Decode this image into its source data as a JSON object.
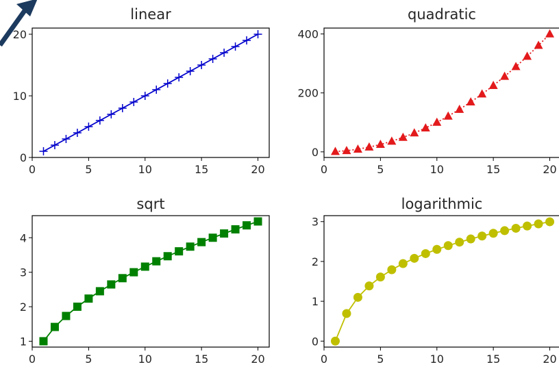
{
  "chart_data": [
    {
      "type": "line",
      "title": "linear",
      "xlabel": "",
      "ylabel": "",
      "marker": "plus",
      "color": "#0000cc",
      "xlim": [
        0,
        21
      ],
      "ylim": [
        0,
        21
      ],
      "xticks": [
        0,
        5,
        10,
        15,
        20
      ],
      "yticks": [
        0,
        10,
        20
      ],
      "grid": false,
      "series": [
        {
          "x": [
            1,
            2,
            3,
            4,
            5,
            6,
            7,
            8,
            9,
            10,
            11,
            12,
            13,
            14,
            15,
            16,
            17,
            18,
            19,
            20
          ],
          "y": [
            1,
            2,
            3,
            4,
            5,
            6,
            7,
            8,
            9,
            10,
            11,
            12,
            13,
            14,
            15,
            16,
            17,
            18,
            19,
            20
          ]
        }
      ]
    },
    {
      "type": "line",
      "title": "quadratic",
      "xlabel": "",
      "ylabel": "",
      "marker": "triangle",
      "linestyle": "dotted",
      "color": "#e31a1c",
      "xlim": [
        0,
        21
      ],
      "ylim": [
        -19,
        420
      ],
      "xticks": [
        0,
        5,
        10,
        15,
        20
      ],
      "yticks": [
        0,
        200,
        400
      ],
      "grid": false,
      "series": [
        {
          "x": [
            1,
            2,
            3,
            4,
            5,
            6,
            7,
            8,
            9,
            10,
            11,
            12,
            13,
            14,
            15,
            16,
            17,
            18,
            19,
            20
          ],
          "y": [
            1,
            4,
            9,
            16,
            25,
            36,
            49,
            64,
            81,
            100,
            121,
            144,
            169,
            196,
            225,
            256,
            289,
            324,
            361,
            400
          ]
        }
      ]
    },
    {
      "type": "line",
      "title": "sqrt",
      "xlabel": "",
      "ylabel": "",
      "marker": "square",
      "color": "#008000",
      "xlim": [
        0,
        21
      ],
      "ylim": [
        0.83,
        4.64
      ],
      "xticks": [
        0,
        5,
        10,
        15,
        20
      ],
      "yticks": [
        1,
        2,
        3,
        4
      ],
      "grid": false,
      "series": [
        {
          "x": [
            1,
            2,
            3,
            4,
            5,
            6,
            7,
            8,
            9,
            10,
            11,
            12,
            13,
            14,
            15,
            16,
            17,
            18,
            19,
            20
          ],
          "y": [
            1,
            1.414,
            1.732,
            2,
            2.236,
            2.449,
            2.646,
            2.828,
            3,
            3.162,
            3.317,
            3.464,
            3.606,
            3.742,
            3.873,
            4,
            4.123,
            4.243,
            4.359,
            4.472
          ]
        }
      ]
    },
    {
      "type": "line",
      "title": "logarithmic",
      "xlabel": "",
      "ylabel": "",
      "marker": "circle",
      "color": "#bfbf00",
      "xlim": [
        0,
        21
      ],
      "ylim": [
        -0.15,
        3.15
      ],
      "xticks": [
        0,
        5,
        10,
        15,
        20
      ],
      "yticks": [
        0,
        1,
        2,
        3
      ],
      "grid": false,
      "series": [
        {
          "x": [
            1,
            2,
            3,
            4,
            5,
            6,
            7,
            8,
            9,
            10,
            11,
            12,
            13,
            14,
            15,
            16,
            17,
            18,
            19,
            20
          ],
          "y": [
            0,
            0.693,
            1.099,
            1.386,
            1.609,
            1.792,
            1.946,
            2.079,
            2.197,
            2.303,
            2.398,
            2.485,
            2.565,
            2.639,
            2.708,
            2.773,
            2.833,
            2.89,
            2.944,
            2.996
          ]
        }
      ]
    }
  ],
  "decoration": {
    "arrow_icon": "arrow-up-right-icon",
    "arrow_color": "#1c3a5e"
  }
}
